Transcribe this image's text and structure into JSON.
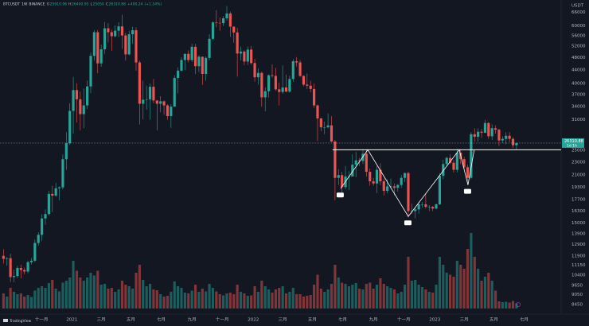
{
  "chart_data": {
    "type": "candlestick",
    "symbol": "BTCUSDT",
    "interval": "1W",
    "exchange": "BINANCE",
    "ohlc_labels": [
      "O",
      "H",
      "L",
      "C"
    ],
    "change": "+400.24",
    "change_pct": "(+1.54%)",
    "currency": "USDT",
    "countdown": "1d 1h",
    "brand": "TradingView",
    "up_color": "#26a69a",
    "down_color": "#ef5350",
    "log_scale": true,
    "grid": false,
    "ylim": [
      7900,
      72000
    ],
    "yticks": [
      66000,
      60000,
      56000,
      52000,
      48000,
      44000,
      40000,
      37000,
      34000,
      31000,
      25000,
      23000,
      21000,
      19300,
      17700,
      16300,
      15000,
      13900,
      12900,
      11900,
      11150,
      10400,
      9650,
      9050,
      8450
    ],
    "xlim": [
      -1,
      159.8
    ],
    "xticks": [
      {
        "value": 10.9,
        "label": "十一月"
      },
      {
        "value": 19.6,
        "label": "2021"
      },
      {
        "value": 28.0,
        "label": "三月"
      },
      {
        "value": 36.5,
        "label": "五月"
      },
      {
        "value": 45.2,
        "label": "七月"
      },
      {
        "value": 54.0,
        "label": "九月"
      },
      {
        "value": 62.7,
        "label": "十一月"
      },
      {
        "value": 71.6,
        "label": "2022"
      },
      {
        "value": 80.0,
        "label": "三月"
      },
      {
        "value": 88.5,
        "label": "五月"
      },
      {
        "value": 97.2,
        "label": "七月"
      },
      {
        "value": 106.0,
        "label": "九月"
      },
      {
        "value": 114.7,
        "label": "十一月"
      },
      {
        "value": 123.6,
        "label": "2023"
      },
      {
        "value": 132.0,
        "label": "三月"
      },
      {
        "value": 140.5,
        "label": "五月"
      },
      {
        "value": 149.2,
        "label": "七月"
      }
    ],
    "vlim": [
      0,
      2600000
    ],
    "neckline": {
      "x": 94.3,
      "y": 25100
    },
    "pattern": {
      "x": [
        96.6,
        104.4,
        116,
        130.6,
        133.1,
        134.9
      ],
      "y": [
        19100,
        25100,
        15700,
        25100,
        19600,
        25100
      ]
    },
    "candles": [
      [
        11900,
        12470,
        11280,
        11650
      ],
      [
        11650,
        11800,
        11100,
        11700
      ],
      [
        11700,
        12090,
        9900,
        10250
      ],
      [
        10250,
        10800,
        9880,
        10330
      ],
      [
        10330,
        11100,
        10200,
        10930
      ],
      [
        10930,
        11180,
        10150,
        10770
      ],
      [
        10770,
        10950,
        10450,
        10660
      ],
      [
        10660,
        11500,
        10530,
        11380
      ],
      [
        11380,
        11720,
        11200,
        11500
      ],
      [
        11500,
        13350,
        11400,
        13030
      ],
      [
        13030,
        14050,
        12800,
        13800
      ],
      [
        13800,
        15970,
        13200,
        15480
      ],
      [
        15480,
        16500,
        14800,
        15970
      ],
      [
        15970,
        18800,
        15800,
        18400
      ],
      [
        18400,
        19500,
        16200,
        18180
      ],
      [
        18180,
        19900,
        18000,
        19150
      ],
      [
        19150,
        19400,
        17600,
        19270
      ],
      [
        19270,
        24300,
        19000,
        23480
      ],
      [
        23480,
        28400,
        21800,
        26280
      ],
      [
        26280,
        34800,
        26000,
        33000
      ],
      [
        33000,
        41900,
        28100,
        38200
      ],
      [
        38200,
        40100,
        30400,
        35800
      ],
      [
        35800,
        37800,
        28800,
        32250
      ],
      [
        32250,
        38600,
        29200,
        34300
      ],
      [
        34300,
        40900,
        33400,
        39200
      ],
      [
        39200,
        49700,
        37400,
        48600
      ],
      [
        48600,
        58300,
        47000,
        57400
      ],
      [
        57400,
        58300,
        43000,
        46100
      ],
      [
        46100,
        52600,
        45000,
        50900
      ],
      [
        50900,
        61700,
        49300,
        59000
      ],
      [
        59000,
        61200,
        53400,
        57400
      ],
      [
        57400,
        58400,
        50400,
        55800
      ],
      [
        55800,
        60200,
        55400,
        58000
      ],
      [
        58000,
        61500,
        55500,
        59800
      ],
      [
        59800,
        64900,
        51000,
        56100
      ],
      [
        56100,
        57100,
        47000,
        49100
      ],
      [
        49100,
        57900,
        48800,
        56600
      ],
      [
        56600,
        59600,
        52900,
        58200
      ],
      [
        58200,
        59400,
        43800,
        46400
      ],
      [
        46400,
        47000,
        30000,
        34700
      ],
      [
        34700,
        40800,
        31100,
        35700
      ],
      [
        35700,
        39400,
        33300,
        35800
      ],
      [
        35800,
        40000,
        31000,
        39100
      ],
      [
        39100,
        41300,
        34800,
        35500
      ],
      [
        35500,
        35600,
        28800,
        34700
      ],
      [
        34700,
        36600,
        32700,
        35300
      ],
      [
        35300,
        35500,
        32100,
        34300
      ],
      [
        34300,
        34600,
        31000,
        31800
      ],
      [
        31800,
        34600,
        29300,
        34000
      ],
      [
        34000,
        42400,
        34000,
        41600
      ],
      [
        41600,
        44800,
        37300,
        43800
      ],
      [
        43800,
        48100,
        43500,
        47200
      ],
      [
        47200,
        49300,
        43900,
        49300
      ],
      [
        49300,
        50500,
        46400,
        47200
      ],
      [
        47200,
        52900,
        46500,
        51800
      ],
      [
        51800,
        52900,
        42800,
        45200
      ],
      [
        45200,
        48800,
        43400,
        48300
      ],
      [
        48300,
        48400,
        39600,
        42800
      ],
      [
        42800,
        48400,
        40800,
        47900
      ],
      [
        47900,
        56600,
        47100,
        54800
      ],
      [
        54800,
        62000,
        54300,
        61500
      ],
      [
        61500,
        67000,
        59500,
        61300
      ],
      [
        61300,
        63700,
        58000,
        61200
      ],
      [
        61200,
        64300,
        60000,
        63300
      ],
      [
        63300,
        69000,
        62300,
        65500
      ],
      [
        65500,
        66300,
        55600,
        59700
      ],
      [
        59700,
        59800,
        53300,
        57300
      ],
      [
        57300,
        59200,
        42000,
        49400
      ],
      [
        49400,
        51900,
        47100,
        50100
      ],
      [
        50100,
        50500,
        45500,
        46700
      ],
      [
        46700,
        51900,
        45600,
        50800
      ],
      [
        50800,
        52100,
        45700,
        46200
      ],
      [
        46200,
        47600,
        40500,
        41800
      ],
      [
        41800,
        44500,
        39700,
        43100
      ],
      [
        43100,
        43500,
        34000,
        36300
      ],
      [
        36300,
        38900,
        32900,
        37900
      ],
      [
        37900,
        42600,
        36200,
        42400
      ],
      [
        42400,
        45800,
        41700,
        42200
      ],
      [
        42200,
        44700,
        38000,
        38400
      ],
      [
        38400,
        40300,
        34300,
        37700
      ],
      [
        37700,
        45400,
        37200,
        38900
      ],
      [
        38900,
        42600,
        37600,
        37800
      ],
      [
        37800,
        42300,
        37500,
        41300
      ],
      [
        41300,
        47500,
        40500,
        46800
      ],
      [
        46800,
        48200,
        45100,
        46400
      ],
      [
        46400,
        47200,
        41900,
        42200
      ],
      [
        42200,
        42400,
        39200,
        39700
      ],
      [
        39700,
        42900,
        38500,
        39400
      ],
      [
        39400,
        40800,
        37600,
        38500
      ],
      [
        38500,
        40000,
        33700,
        34300
      ],
      [
        34300,
        34500,
        26700,
        31300
      ],
      [
        31300,
        31400,
        28600,
        29400
      ],
      [
        29400,
        30600,
        28000,
        29400
      ],
      [
        29400,
        32400,
        29200,
        29800
      ],
      [
        29800,
        31800,
        26500,
        26600
      ],
      [
        26600,
        26900,
        17600,
        20600
      ],
      [
        20600,
        21900,
        19600,
        21000
      ],
      [
        21000,
        21500,
        18600,
        19300
      ],
      [
        19300,
        22400,
        19000,
        20800
      ],
      [
        20800,
        21600,
        18900,
        20800
      ],
      [
        20800,
        24300,
        20800,
        22600
      ],
      [
        22600,
        24700,
        20700,
        23300
      ],
      [
        23300,
        23700,
        22400,
        23200
      ],
      [
        23200,
        25200,
        22700,
        24400
      ],
      [
        24400,
        25200,
        20800,
        21500
      ],
      [
        21500,
        22000,
        19500,
        20100
      ],
      [
        20100,
        20600,
        19500,
        19800
      ],
      [
        19800,
        22400,
        18500,
        21800
      ],
      [
        21800,
        22800,
        19600,
        20100
      ],
      [
        20100,
        20500,
        18200,
        18800
      ],
      [
        18800,
        20400,
        18500,
        19400
      ],
      [
        19400,
        20500,
        19100,
        19400
      ],
      [
        19400,
        19800,
        18200,
        19200
      ],
      [
        19200,
        19700,
        18700,
        19600
      ],
      [
        19600,
        21000,
        19200,
        20600
      ],
      [
        20600,
        21400,
        20000,
        21300
      ],
      [
        21300,
        21500,
        15600,
        16300
      ],
      [
        16300,
        17200,
        16000,
        16300
      ],
      [
        16300,
        16800,
        15500,
        16500
      ],
      [
        16500,
        17400,
        16000,
        17100
      ],
      [
        17100,
        17400,
        16700,
        17100
      ],
      [
        17100,
        18400,
        16600,
        16800
      ],
      [
        16800,
        17000,
        16300,
        16800
      ],
      [
        16800,
        16900,
        16300,
        16600
      ],
      [
        16600,
        17200,
        16500,
        17100
      ],
      [
        17100,
        21300,
        17000,
        20900
      ],
      [
        20900,
        23400,
        20400,
        22700
      ],
      [
        22700,
        23900,
        22300,
        23700
      ],
      [
        23700,
        24300,
        22700,
        22900
      ],
      [
        22900,
        23400,
        21400,
        21800
      ],
      [
        21800,
        25300,
        21400,
        24600
      ],
      [
        24600,
        25100,
        22700,
        23500
      ],
      [
        23500,
        23900,
        21900,
        22200
      ],
      [
        22200,
        22600,
        19600,
        20600
      ],
      [
        20600,
        28400,
        20400,
        28000
      ],
      [
        28000,
        29200,
        26600,
        27500
      ],
      [
        27500,
        29200,
        26600,
        28500
      ],
      [
        28500,
        29100,
        27300,
        28300
      ],
      [
        28300,
        31000,
        28200,
        30300
      ],
      [
        30300,
        30500,
        27100,
        27600
      ],
      [
        27600,
        30000,
        26900,
        29200
      ],
      [
        29200,
        29800,
        28100,
        28900
      ],
      [
        28900,
        29100,
        25800,
        26800
      ],
      [
        26800,
        27600,
        26300,
        27100
      ],
      [
        27100,
        28400,
        26100,
        27700
      ],
      [
        27700,
        28400,
        26500,
        27100
      ],
      [
        27100,
        27400,
        25400,
        25900
      ],
      [
        25910.96,
        26400.95,
        25050.0,
        26310.88
      ]
    ],
    "volume": [
      380000,
      300000,
      520000,
      420000,
      360000,
      380000,
      300000,
      340000,
      290000,
      450000,
      520000,
      560000,
      520000,
      640000,
      720000,
      500000,
      430000,
      650000,
      700000,
      780000,
      1200000,
      950000,
      780000,
      700000,
      780000,
      900000,
      830000,
      950000,
      600000,
      620000,
      500000,
      520000,
      420000,
      480000,
      700000,
      600000,
      560000,
      500000,
      900000,
      1100000,
      720000,
      560000,
      620000,
      480000,
      460000,
      360000,
      300000,
      320000,
      420000,
      680000,
      560000,
      520000,
      400000,
      380000,
      450000,
      600000,
      420000,
      500000,
      430000,
      620000,
      520000,
      430000,
      360000,
      330000,
      380000,
      400000,
      360000,
      600000,
      420000,
      380000,
      320000,
      330000,
      560000,
      420000,
      700000,
      560000,
      480000,
      400000,
      480000,
      520000,
      560000,
      380000,
      420000,
      520000,
      360000,
      360000,
      300000,
      320000,
      340000,
      600000,
      850000,
      500000,
      420000,
      480000,
      620000,
      1100000,
      780000,
      650000,
      620000,
      560000,
      600000,
      640000,
      500000,
      480000,
      620000,
      650000,
      500000,
      600000,
      760000,
      620000,
      560000,
      520000,
      480000,
      380000,
      420000,
      600000,
      1300000,
      700000,
      720000,
      600000,
      540000,
      480000,
      420000,
      400000,
      600000,
      1300000,
      1100000,
      900000,
      850000,
      800000,
      1200000,
      1100000,
      1000000,
      1500000,
      1900000,
      1300000,
      1000000,
      700000,
      800000,
      900000,
      700000,
      450000,
      180000,
      160000,
      170000,
      150000,
      190000,
      130000
    ]
  }
}
